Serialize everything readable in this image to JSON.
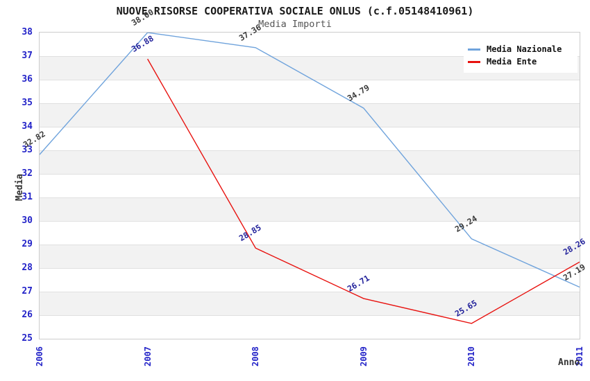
{
  "header": {
    "title": "NUOVE RISORSE COOPERATIVA SOCIALE ONLUS (c.f.05148410961)",
    "subtitle": "Media Importi"
  },
  "colors": {
    "plot_border": "#cccccc",
    "grid_line": "#e0e0e0",
    "band_gray": "#f2f2f2",
    "band_white": "#ffffff",
    "tick_label": "#2323c8",
    "axis_title": "#333333",
    "title": "#1a1a1a",
    "subtitle": "#555555",
    "legend_bg": "#ffffff",
    "legend_text": "#111111"
  },
  "chart_data": {
    "type": "line",
    "title": "NUOVE RISORSE COOPERATIVA SOCIALE ONLUS (c.f.05148410961)",
    "subtitle": "Media Importi",
    "xlabel": "Anno",
    "ylabel": "Media",
    "categories": [
      "2006",
      "2007",
      "2008",
      "2009",
      "2010",
      "2011"
    ],
    "ylim": [
      25,
      38
    ],
    "y_tick_step": 1,
    "grid": true,
    "alternating_bands": true,
    "legend_position": "top-right",
    "series": [
      {
        "name": "Media Nazionale",
        "color": "#6fa3dc",
        "label_color": "#3a3a3a",
        "x": [
          "2006",
          "2007",
          "2008",
          "2009",
          "2010",
          "2011"
        ],
        "values": [
          32.82,
          38.0,
          37.36,
          34.79,
          29.24,
          27.19
        ]
      },
      {
        "name": "Media Ente",
        "color": "#e8120f",
        "label_color": "#22229b",
        "x": [
          "2007",
          "2008",
          "2009",
          "2010",
          "2011"
        ],
        "values": [
          36.88,
          28.85,
          26.71,
          25.65,
          28.26
        ]
      }
    ]
  }
}
